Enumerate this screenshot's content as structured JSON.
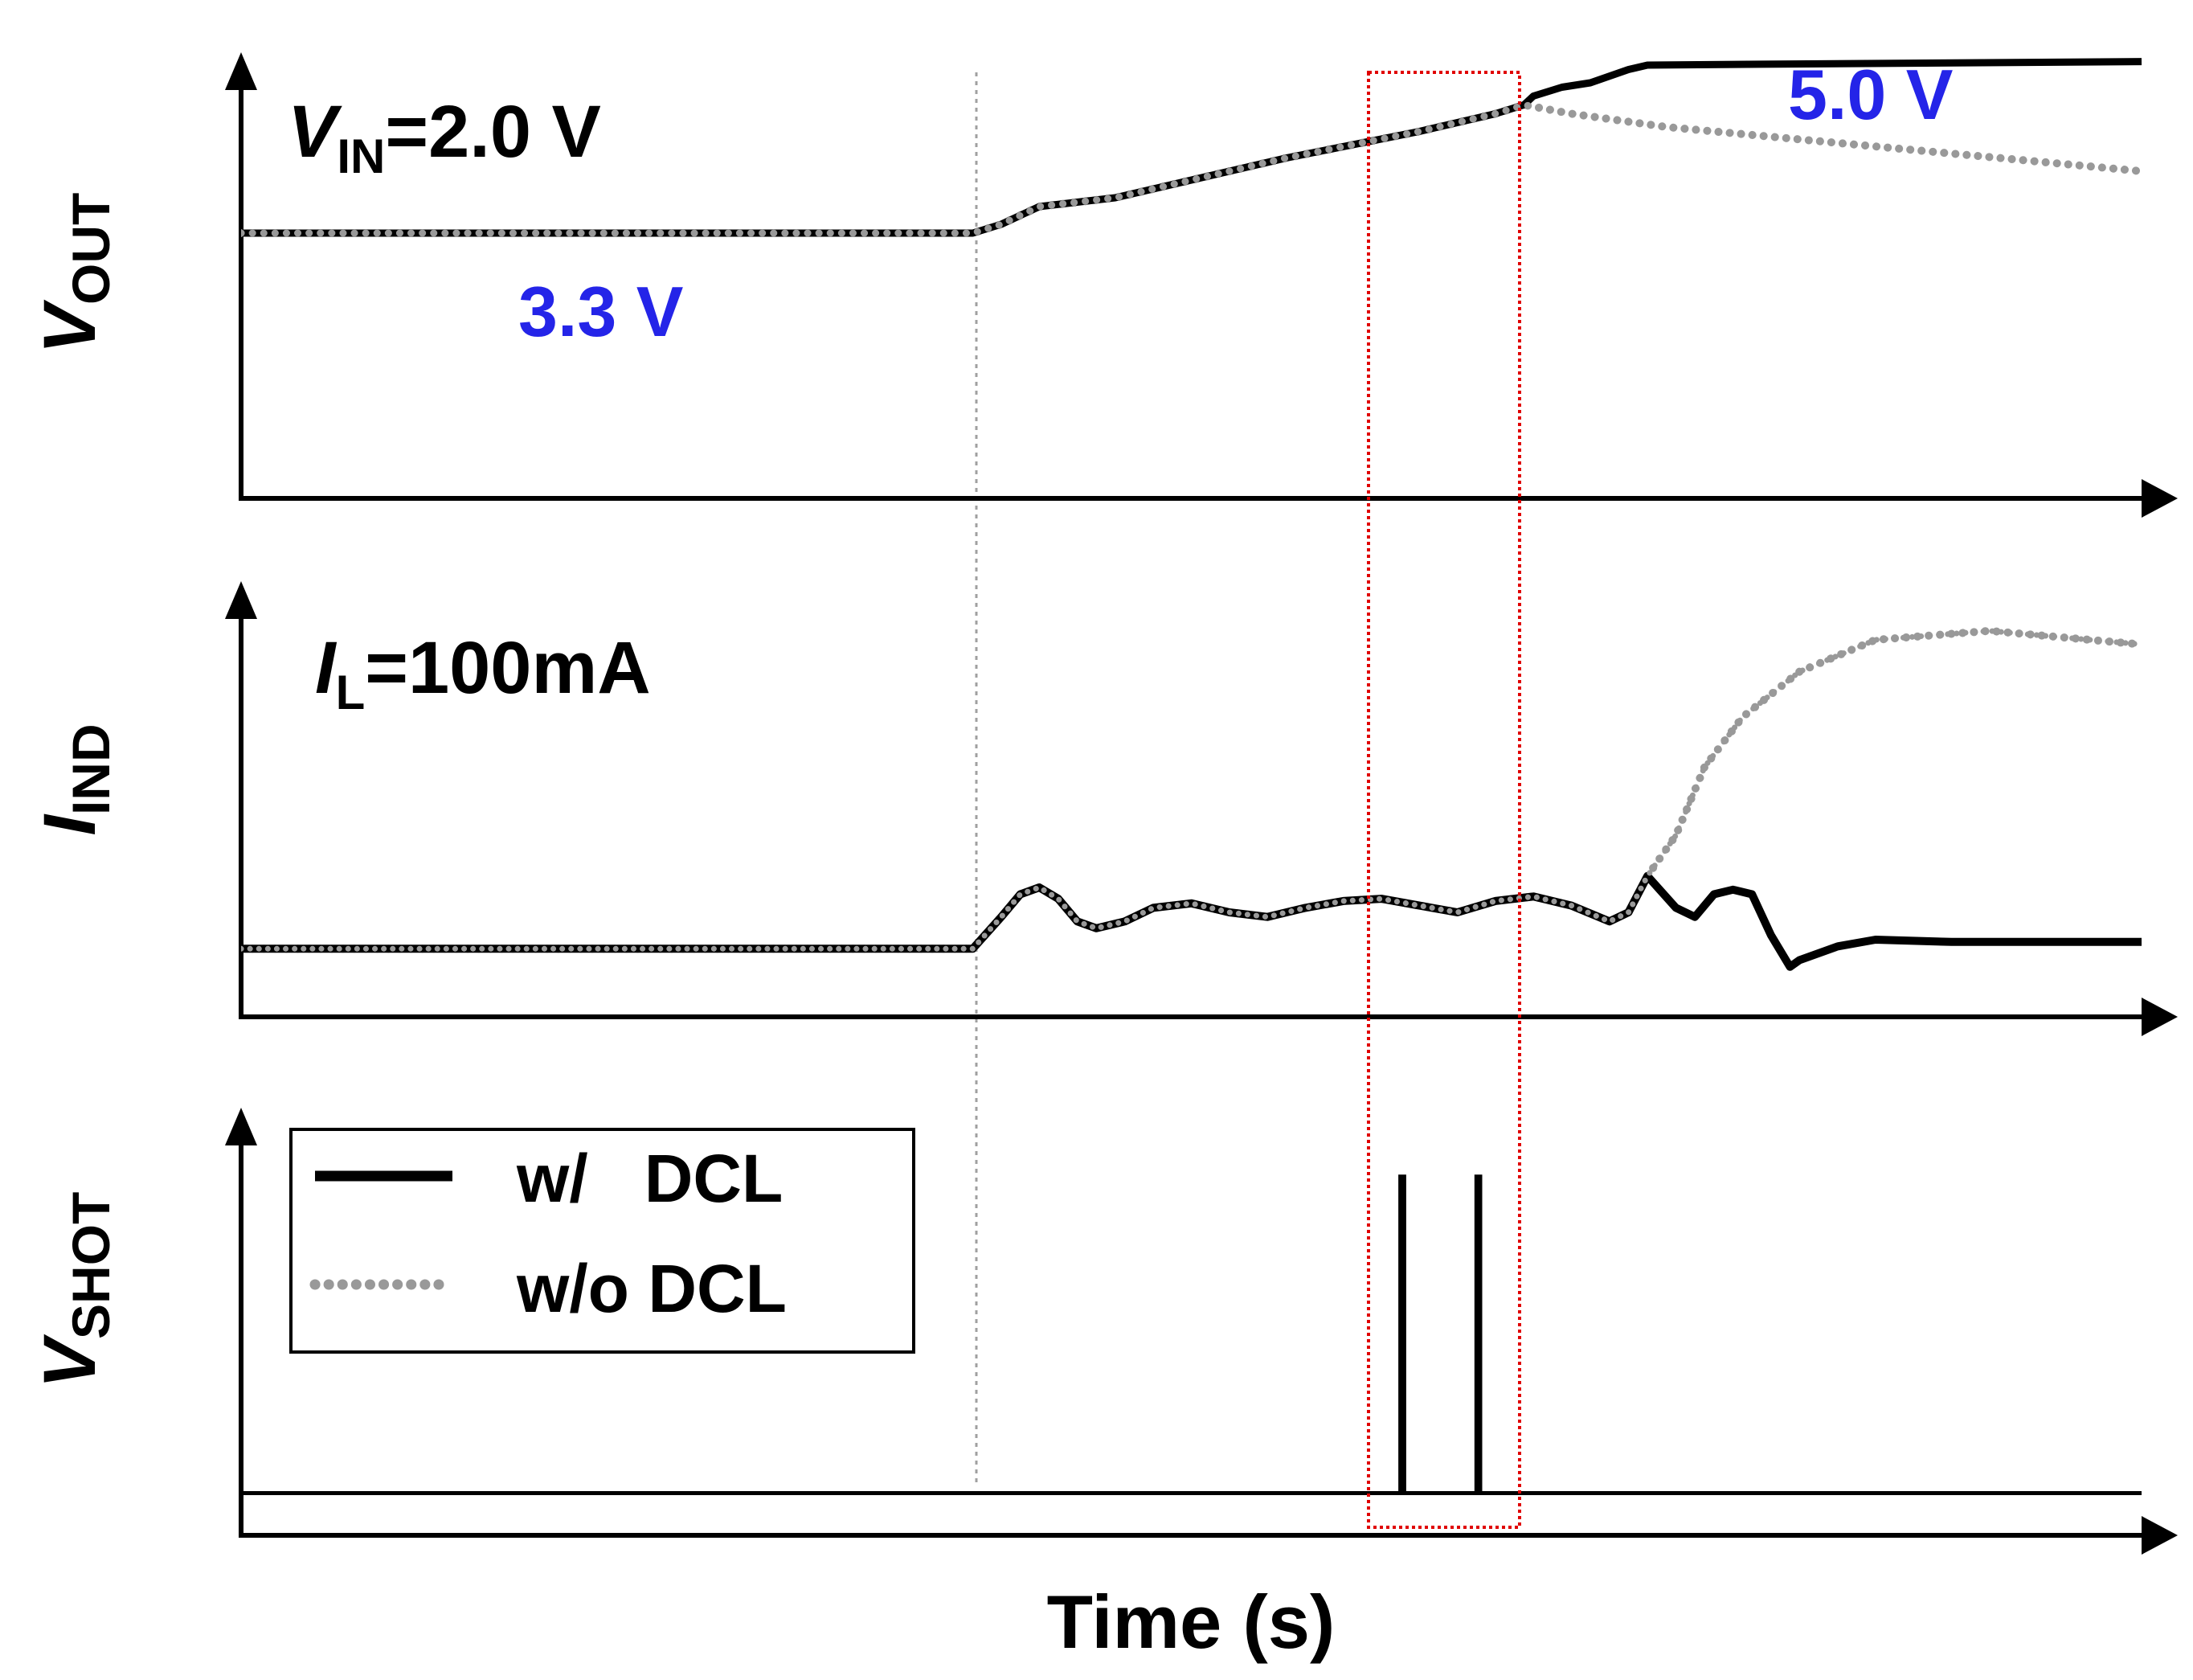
{
  "chart_data": {
    "type": "line",
    "xlabel": "Time (s)",
    "x_domain": [
      0,
      100
    ],
    "panels": [
      {
        "ylabel_main": "V",
        "ylabel_sub": "OUT",
        "y_domain": [
          0,
          100
        ],
        "note_main": "V",
        "note_sub": "IN",
        "note_rest": "=2.0 V",
        "series": [
          {
            "name": "w/ DCL",
            "points": [
              [
                0,
                60
              ],
              [
                38.5,
                60
              ],
              [
                40,
                62
              ],
              [
                42,
                66
              ],
              [
                46,
                68
              ],
              [
                55,
                77
              ],
              [
                62,
                83
              ],
              [
                66,
                87
              ],
              [
                67.5,
                89
              ],
              [
                68,
                91
              ],
              [
                69.5,
                93
              ],
              [
                71,
                94
              ],
              [
                73,
                97
              ],
              [
                74,
                98
              ],
              [
                80,
                98.2
              ],
              [
                100,
                98.8
              ]
            ]
          },
          {
            "name": "w/o DCL",
            "points": [
              [
                0,
                60
              ],
              [
                38.5,
                60
              ],
              [
                40,
                62
              ],
              [
                42,
                66
              ],
              [
                46,
                68
              ],
              [
                55,
                77
              ],
              [
                62,
                83
              ],
              [
                66,
                87
              ],
              [
                67.5,
                89
              ],
              [
                70,
                87
              ],
              [
                75,
                84
              ],
              [
                85,
                80
              ],
              [
                100,
                74
              ]
            ]
          }
        ]
      },
      {
        "ylabel_main": "I",
        "ylabel_sub": "IND",
        "y_domain": [
          0,
          100
        ],
        "note_main": "I",
        "note_sub": "L",
        "note_rest": "=100mA",
        "series": [
          {
            "name": "w/ DCL",
            "points": [
              [
                0,
                15
              ],
              [
                38.5,
                15
              ],
              [
                40,
                22
              ],
              [
                41,
                27
              ],
              [
                42,
                28.5
              ],
              [
                43,
                26
              ],
              [
                44,
                21
              ],
              [
                45,
                19.5
              ],
              [
                46.5,
                21
              ],
              [
                48,
                24
              ],
              [
                50,
                25
              ],
              [
                52,
                23
              ],
              [
                54,
                22
              ],
              [
                56,
                24
              ],
              [
                58,
                25.5
              ],
              [
                60,
                26
              ],
              [
                62,
                24.5
              ],
              [
                64,
                23
              ],
              [
                66,
                25.5
              ],
              [
                68,
                26.5
              ],
              [
                70,
                24.5
              ],
              [
                72,
                21
              ],
              [
                73,
                23
              ],
              [
                74,
                31
              ],
              [
                75.5,
                24
              ],
              [
                76.5,
                22
              ],
              [
                77.5,
                27
              ],
              [
                78.5,
                28
              ],
              [
                79.5,
                27
              ],
              [
                80.5,
                18
              ],
              [
                81.5,
                11
              ],
              [
                82,
                12.5
              ],
              [
                84,
                15.5
              ],
              [
                86,
                17
              ],
              [
                90,
                16.5
              ],
              [
                100,
                16.5
              ]
            ]
          },
          {
            "name": "w/o DCL",
            "points": [
              [
                0,
                15
              ],
              [
                38.5,
                15
              ],
              [
                40,
                22
              ],
              [
                41,
                27
              ],
              [
                42,
                28.5
              ],
              [
                43,
                26
              ],
              [
                44,
                21
              ],
              [
                45,
                19.5
              ],
              [
                46.5,
                21
              ],
              [
                48,
                24
              ],
              [
                50,
                25
              ],
              [
                52,
                23
              ],
              [
                54,
                22
              ],
              [
                56,
                24
              ],
              [
                58,
                25.5
              ],
              [
                60,
                26
              ],
              [
                62,
                24.5
              ],
              [
                64,
                23
              ],
              [
                66,
                25.5
              ],
              [
                68,
                26.5
              ],
              [
                70,
                24.5
              ],
              [
                72,
                21
              ],
              [
                73,
                23
              ],
              [
                74,
                31
              ],
              [
                75.5,
                40
              ],
              [
                77,
                55
              ],
              [
                79,
                66
              ],
              [
                82,
                76
              ],
              [
                86,
                83
              ],
              [
                92,
                85
              ],
              [
                100,
                82
              ]
            ]
          }
        ]
      },
      {
        "ylabel_main": "V",
        "ylabel_sub": "SHOT",
        "y_domain": [
          0,
          100
        ],
        "series": [
          {
            "name": "w/ DCL",
            "points": [
              [
                0,
                10
              ],
              [
                61,
                10
              ],
              [
                61,
                85
              ],
              [
                61.2,
                85
              ],
              [
                61.2,
                10
              ],
              [
                65,
                10
              ],
              [
                65,
                85
              ],
              [
                65.2,
                85
              ],
              [
                65.2,
                10
              ],
              [
                100,
                10
              ]
            ]
          }
        ]
      }
    ],
    "annotations": [
      {
        "text": "3.3 V",
        "color": "#2424e8"
      },
      {
        "text": "5.0 V",
        "color": "#2424e8"
      }
    ],
    "legend": {
      "placement": "top-left",
      "entries": [
        {
          "label": "w/   DCL",
          "style": "solid",
          "color": "#000000"
        },
        {
          "label": "w/o DCL",
          "style": "dotted",
          "color": "#999999"
        }
      ]
    },
    "markers": [
      {
        "kind": "vertical-dotted-line",
        "x": 38.5,
        "color": "#999999"
      },
      {
        "kind": "highlight-rect",
        "x_range": [
          58.5,
          66.5
        ],
        "color": "#e00000"
      }
    ]
  }
}
